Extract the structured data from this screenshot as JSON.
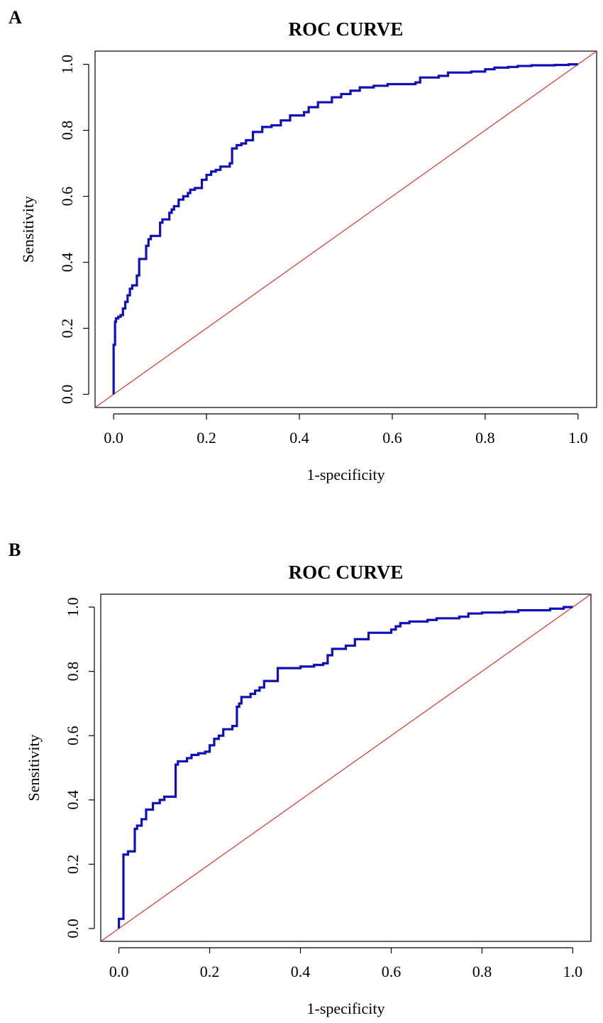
{
  "colors": {
    "roc_curve": "#1010b8",
    "reference_line": "#e8332a",
    "axis": "#000000"
  },
  "chart_data": [
    {
      "panel": "A",
      "type": "line",
      "title": "ROC CURVE",
      "xlabel": "1-specificity",
      "ylabel": "Sensitivity",
      "xlim": [
        -0.04,
        1.04
      ],
      "ylim": [
        -0.04,
        1.04
      ],
      "xticks": [
        "0.0",
        "0.2",
        "0.4",
        "0.6",
        "0.8",
        "1.0"
      ],
      "yticks": [
        "0.0",
        "0.2",
        "0.4",
        "0.6",
        "0.8",
        "1.0"
      ],
      "grid": false,
      "series": [
        {
          "name": "ROC",
          "step": true,
          "x": [
            0.0,
            0.0,
            0.003,
            0.005,
            0.01,
            0.015,
            0.02,
            0.025,
            0.03,
            0.035,
            0.04,
            0.05,
            0.055,
            0.06,
            0.07,
            0.075,
            0.08,
            0.085,
            0.09,
            0.1,
            0.105,
            0.11,
            0.12,
            0.125,
            0.13,
            0.14,
            0.15,
            0.16,
            0.165,
            0.175,
            0.19,
            0.2,
            0.21,
            0.22,
            0.23,
            0.25,
            0.255,
            0.265,
            0.275,
            0.285,
            0.3,
            0.32,
            0.34,
            0.36,
            0.38,
            0.41,
            0.42,
            0.44,
            0.47,
            0.49,
            0.51,
            0.53,
            0.56,
            0.59,
            0.6,
            0.65,
            0.66,
            0.7,
            0.72,
            0.77,
            0.8,
            0.82,
            0.85,
            0.87,
            0.9,
            0.95,
            0.98,
            1.0
          ],
          "y": [
            0.0,
            0.15,
            0.22,
            0.23,
            0.235,
            0.24,
            0.26,
            0.28,
            0.3,
            0.32,
            0.33,
            0.36,
            0.41,
            0.41,
            0.45,
            0.47,
            0.48,
            0.48,
            0.48,
            0.52,
            0.53,
            0.53,
            0.55,
            0.56,
            0.57,
            0.59,
            0.6,
            0.61,
            0.62,
            0.625,
            0.65,
            0.665,
            0.675,
            0.68,
            0.69,
            0.7,
            0.745,
            0.755,
            0.76,
            0.77,
            0.795,
            0.81,
            0.815,
            0.83,
            0.845,
            0.855,
            0.87,
            0.885,
            0.9,
            0.91,
            0.92,
            0.93,
            0.935,
            0.94,
            0.94,
            0.945,
            0.96,
            0.965,
            0.975,
            0.978,
            0.985,
            0.99,
            0.992,
            0.995,
            0.997,
            0.998,
            1.0,
            1.0
          ]
        },
        {
          "name": "Reference",
          "x": [
            -0.04,
            1.04
          ],
          "y": [
            -0.04,
            1.04
          ]
        }
      ]
    },
    {
      "panel": "B",
      "type": "line",
      "title": "ROC CURVE",
      "xlabel": "1-specificity",
      "ylabel": "Sensitivity",
      "xlim": [
        -0.04,
        1.04
      ],
      "ylim": [
        -0.04,
        1.04
      ],
      "xticks": [
        "0.0",
        "0.2",
        "0.4",
        "0.6",
        "0.8",
        "1.0"
      ],
      "yticks": [
        "0.0",
        "0.2",
        "0.4",
        "0.6",
        "0.8",
        "1.0"
      ],
      "grid": false,
      "series": [
        {
          "name": "ROC",
          "step": true,
          "x": [
            0.0,
            0.0,
            0.01,
            0.01,
            0.02,
            0.03,
            0.035,
            0.04,
            0.05,
            0.06,
            0.075,
            0.09,
            0.1,
            0.125,
            0.125,
            0.13,
            0.15,
            0.16,
            0.175,
            0.19,
            0.2,
            0.21,
            0.22,
            0.23,
            0.25,
            0.26,
            0.265,
            0.27,
            0.29,
            0.3,
            0.31,
            0.32,
            0.33,
            0.35,
            0.4,
            0.43,
            0.45,
            0.46,
            0.47,
            0.5,
            0.52,
            0.55,
            0.6,
            0.61,
            0.62,
            0.64,
            0.68,
            0.7,
            0.75,
            0.77,
            0.8,
            0.85,
            0.88,
            0.95,
            0.98,
            1.0
          ],
          "y": [
            0.0,
            0.03,
            0.03,
            0.23,
            0.24,
            0.24,
            0.31,
            0.32,
            0.34,
            0.37,
            0.39,
            0.4,
            0.41,
            0.41,
            0.51,
            0.52,
            0.53,
            0.54,
            0.545,
            0.55,
            0.57,
            0.59,
            0.6,
            0.62,
            0.63,
            0.69,
            0.7,
            0.72,
            0.73,
            0.74,
            0.75,
            0.77,
            0.77,
            0.81,
            0.815,
            0.82,
            0.825,
            0.85,
            0.87,
            0.88,
            0.9,
            0.92,
            0.93,
            0.94,
            0.95,
            0.955,
            0.96,
            0.965,
            0.97,
            0.98,
            0.983,
            0.985,
            0.99,
            0.995,
            1.0,
            1.0
          ]
        },
        {
          "name": "Reference",
          "x": [
            -0.04,
            1.04
          ],
          "y": [
            -0.04,
            1.04
          ]
        }
      ]
    }
  ],
  "panels": [
    {
      "letter": "A"
    },
    {
      "letter": "B"
    }
  ]
}
